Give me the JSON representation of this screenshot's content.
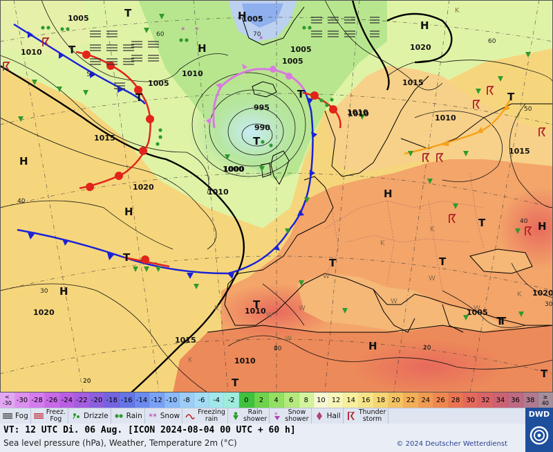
{
  "header": {
    "valid_time_line": "VT: 12 UTC Di.  06 Aug. [ICON 2024-08-04  00 UTC + 60 h]",
    "description": "Sea level pressure (hPa), Weather, Temperature 2m (°C)",
    "copyright": "© 2024 Deutscher Wetterdienst"
  },
  "brand": {
    "logo_text": "DWD"
  },
  "temperature_scale": [
    {
      "label": "<\n-30",
      "color": "#e2a6f3"
    },
    {
      "label": "-30",
      "color": "#dd8ff0"
    },
    {
      "label": "-28",
      "color": "#d47ced"
    },
    {
      "label": "-26",
      "color": "#c86ae8"
    },
    {
      "label": "-24",
      "color": "#b95fe3"
    },
    {
      "label": "-22",
      "color": "#a55edf"
    },
    {
      "label": "-20",
      "color": "#8d5fde"
    },
    {
      "label": "-18",
      "color": "#7464e1"
    },
    {
      "label": "-16",
      "color": "#6575e6"
    },
    {
      "label": "-14",
      "color": "#6b8bf0"
    },
    {
      "label": "-12",
      "color": "#79a2f6"
    },
    {
      "label": "-10",
      "color": "#8bbaf8"
    },
    {
      "label": "-8",
      "color": "#9bcdf7"
    },
    {
      "label": "-6",
      "color": "#a3dcf4"
    },
    {
      "label": "-4",
      "color": "#a2e8ea"
    },
    {
      "label": "-2",
      "color": "#9eeddb"
    },
    {
      "label": "0",
      "color": "#3fc23f"
    },
    {
      "label": "2",
      "color": "#6ed34b"
    },
    {
      "label": "4",
      "color": "#93df62"
    },
    {
      "label": "6",
      "color": "#b4ea7c"
    },
    {
      "label": "8",
      "color": "#d4f39e"
    },
    {
      "label": "10",
      "color": "#f6f8d2"
    },
    {
      "label": "12",
      "color": "#f8f6b8"
    },
    {
      "label": "14",
      "color": "#f7ef9d"
    },
    {
      "label": "16",
      "color": "#f7e486"
    },
    {
      "label": "18",
      "color": "#f6d573"
    },
    {
      "label": "20",
      "color": "#f4c262"
    },
    {
      "label": "22",
      "color": "#f3ae58"
    },
    {
      "label": "24",
      "color": "#f19a52"
    },
    {
      "label": "26",
      "color": "#ef8751"
    },
    {
      "label": "28",
      "color": "#eb7453"
    },
    {
      "label": "30",
      "color": "#e36a5b"
    },
    {
      "label": "32",
      "color": "#d96467"
    },
    {
      "label": "34",
      "color": "#cc6374"
    },
    {
      "label": "36",
      "color": "#bd6a82"
    },
    {
      "label": "38",
      "color": "#b07a8f"
    },
    {
      "label": "≥\n40",
      "color": "#a58f9c"
    }
  ],
  "weather_legend": [
    {
      "label": "Fog",
      "icon": "fog-icon"
    },
    {
      "label": "Freez.\nFog",
      "icon": "freezing-fog-icon"
    },
    {
      "label": "Drizzle",
      "icon": "drizzle-icon"
    },
    {
      "label": "Rain",
      "icon": "rain-icon"
    },
    {
      "label": "Snow",
      "icon": "snow-icon"
    },
    {
      "label": "Freezing\nrain",
      "icon": "freezing-rain-icon"
    },
    {
      "label": "Rain\nshower",
      "icon": "rain-shower-icon"
    },
    {
      "label": "Snow\nshower",
      "icon": "snow-shower-icon"
    },
    {
      "label": "Hail",
      "icon": "hail-icon"
    },
    {
      "label": "Thunder\nstorm",
      "icon": "thunderstorm-icon"
    }
  ],
  "map": {
    "colors": {
      "land_warm": "#f3a66a",
      "sea_warm": "#f6cf7a",
      "cool_green": "#b7e58c",
      "greenland_ice": "#c9d8f2",
      "isobar": "#111111",
      "cold_front": "#1a22d6",
      "warm_front": "#e2231a",
      "occlusion": "#d87ae0",
      "trough": "#f7a11b"
    },
    "pressure_labels": [
      "1005",
      "1015",
      "1010",
      "1005",
      "1010",
      "1005",
      "1020",
      "1015",
      "1010",
      "995",
      "990",
      "1000",
      "1010",
      "1015",
      "1020",
      "1010",
      "1005",
      "1020",
      "1010",
      "1015",
      "1005",
      "1010",
      "1005",
      "1020",
      "1010",
      "1000"
    ],
    "high_low_labels": [
      "H",
      "T",
      "T",
      "T",
      "H",
      "T",
      "T",
      "H",
      "T",
      "T",
      "H",
      "H",
      "H",
      "T",
      "H",
      "T",
      "T",
      "T",
      "H",
      "H",
      "T",
      "T",
      "T",
      "T"
    ],
    "graticule_labels": [
      "60",
      "50",
      "40",
      "30",
      "20",
      "70",
      "60",
      "50",
      "40",
      "30",
      "20",
      "10",
      "0",
      "10",
      "20"
    ],
    "tick_marks": [
      "K",
      "K",
      "K",
      "K",
      "K",
      "K",
      "W",
      "W",
      "W",
      "W",
      "W",
      "W",
      "W"
    ]
  }
}
